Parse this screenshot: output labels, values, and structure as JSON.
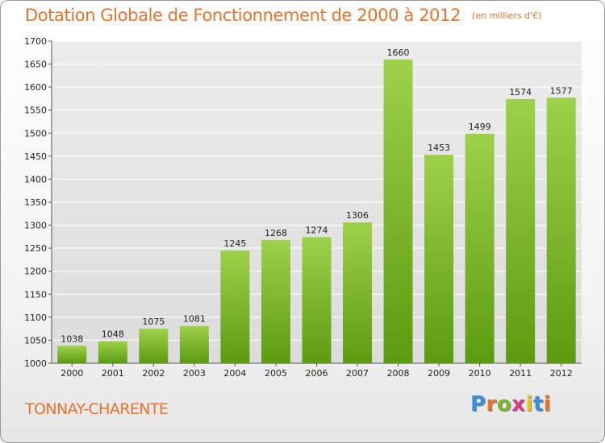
{
  "header": {
    "title": "Dotation Globale de Fonctionnement de 2000 à 2012",
    "unit": "(en milliers d'€)"
  },
  "footer": {
    "city": "TONNAY-CHARENTE",
    "logo": [
      "P",
      "r",
      "o",
      "x",
      "i",
      "t",
      "i"
    ],
    "logo_colors": [
      "#3a8fd6",
      "#e8742b",
      "#7ab82a",
      "#d83a8a",
      "#e8c21a",
      "#3a8fd6",
      "#e8742b"
    ]
  },
  "chart_data": {
    "type": "bar",
    "title": "Dotation Globale de Fonctionnement de 2000 à 2012",
    "subtitle": "(en milliers d'€)",
    "categories": [
      "2000",
      "2001",
      "2002",
      "2003",
      "2004",
      "2005",
      "2006",
      "2007",
      "2008",
      "2009",
      "2010",
      "2011",
      "2012"
    ],
    "values": [
      1038,
      1048,
      1075,
      1081,
      1245,
      1268,
      1274,
      1306,
      1660,
      1453,
      1499,
      1574,
      1577
    ],
    "value_labels": [
      "1038",
      "1048",
      "1075",
      "1081",
      "1245",
      "1268",
      "1274",
      "1306",
      "1660",
      "1453",
      "1499",
      "1574",
      "1577"
    ],
    "ylim": [
      1000,
      1700
    ],
    "yticks": [
      1000,
      1050,
      1100,
      1150,
      1200,
      1250,
      1300,
      1350,
      1400,
      1450,
      1500,
      1550,
      1600,
      1650,
      1700
    ],
    "ytick_labels": [
      "1000",
      "1050",
      "1100",
      "1150",
      "1200",
      "1250",
      "1300",
      "1350",
      "1400",
      "1450",
      "1500",
      "1550",
      "1600",
      "1650",
      "1700"
    ],
    "grid": true,
    "bar_color_top": "#9ed14a",
    "bar_color_bottom": "#5c9b0f"
  }
}
